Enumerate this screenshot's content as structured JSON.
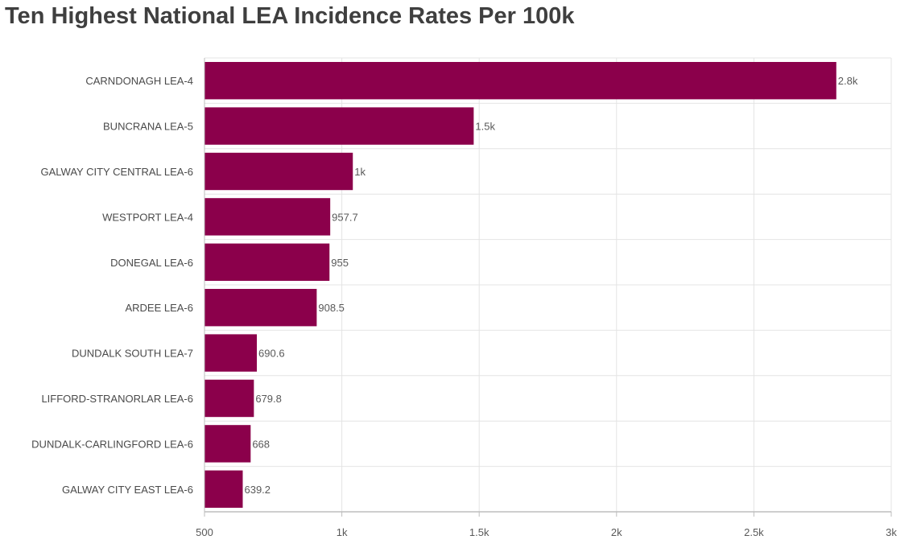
{
  "title": "Ten Highest National LEA Incidence Rates Per 100k",
  "colors": {
    "bar": "#8b004b",
    "grid": "#e4e4e4",
    "axis": "#bdbdbd"
  },
  "chart_data": {
    "type": "bar",
    "orientation": "horizontal",
    "title": "Ten Highest National LEA Incidence Rates Per 100k",
    "categories": [
      "CARNDONAGH LEA-4",
      "BUNCRANA LEA-5",
      "GALWAY CITY CENTRAL LEA-6",
      "WESTPORT LEA-4",
      "DONEGAL LEA-6",
      "ARDEE LEA-6",
      "DUNDALK SOUTH LEA-7",
      "LIFFORD-STRANORLAR LEA-6",
      "DUNDALK-CARLINGFORD LEA-6",
      "GALWAY CITY EAST LEA-6"
    ],
    "values": [
      2800,
      1480,
      1040,
      957.7,
      955,
      908.5,
      690.6,
      679.8,
      668,
      639.2
    ],
    "value_labels": [
      "2.8k",
      "1.5k",
      "1k",
      "957.7",
      "955",
      "908.5",
      "690.6",
      "679.8",
      "668",
      "639.2"
    ],
    "xlim": [
      500,
      3000
    ],
    "x_ticks": [
      500,
      1000,
      1500,
      2000,
      2500,
      3000
    ],
    "x_tick_labels": [
      "500",
      "1k",
      "1.5k",
      "2k",
      "2.5k",
      "3k"
    ],
    "xlabel": "",
    "ylabel": "",
    "grid": true,
    "legend": "none"
  }
}
